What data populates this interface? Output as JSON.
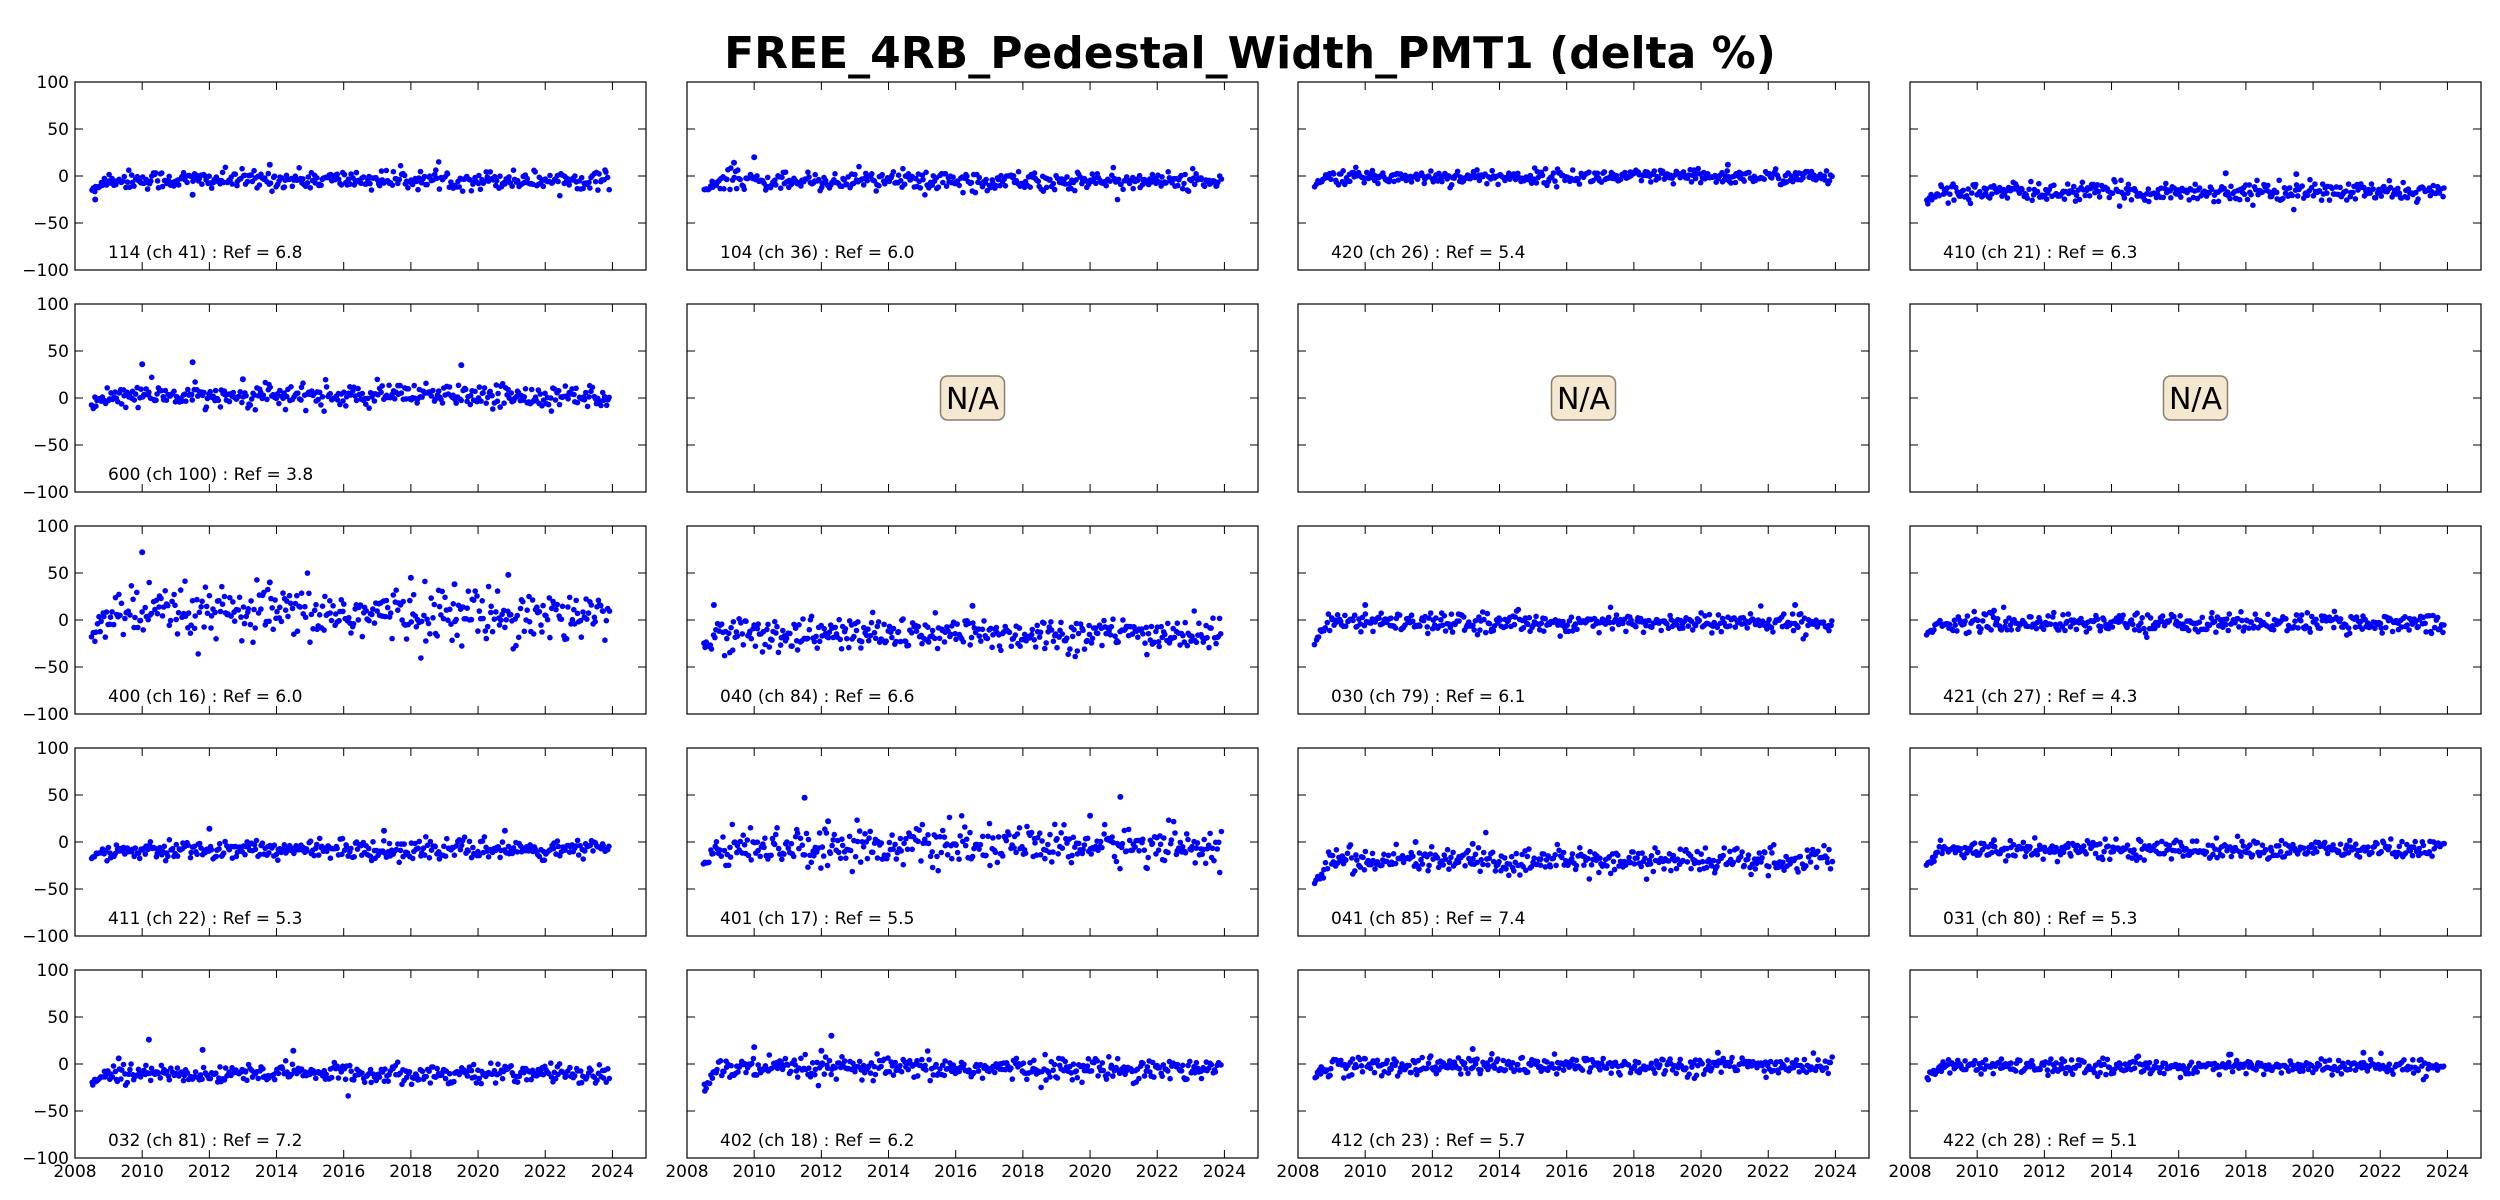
{
  "chart_data": {
    "type": "scatter",
    "title": "FREE_4RB_Pedestal_Width_PMT1 (delta %)",
    "layout": {
      "rows": 5,
      "cols": 4
    },
    "xlim": [
      2008,
      2025
    ],
    "ylim": [
      -100,
      100
    ],
    "xticks": [
      2008,
      2010,
      2012,
      2014,
      2016,
      2018,
      2020,
      2022,
      2024
    ],
    "yticks": [
      100,
      50,
      0,
      -50,
      -100
    ],
    "xtick_labels": [
      "2008",
      "2010",
      "2012",
      "2014",
      "2016",
      "2018",
      "2020",
      "2022",
      "2024"
    ],
    "ytick_labels": [
      "100",
      "50",
      "0",
      "−50",
      "−100"
    ],
    "grid": false,
    "series_color": "#0000ff",
    "na_box_color": "#f5e8d0",
    "na_label": "N/A",
    "x_range": [
      2008.5,
      2023.9
    ],
    "panels": [
      {
        "label": "114 (ch 41) : Ref = 6.8",
        "na": false,
        "level": -4,
        "spread": 5,
        "start": -15,
        "outliers": [
          [
            2008.6,
            -25
          ],
          [
            2013.8,
            12
          ],
          [
            2011.5,
            -20
          ]
        ]
      },
      {
        "label": "104 (ch 36) : Ref = 6.0",
        "na": false,
        "level": -5,
        "spread": 5,
        "start": -15,
        "outliers": [
          [
            2010.0,
            20
          ],
          [
            2009.4,
            14
          ]
        ]
      },
      {
        "label": "420 (ch 26) : Ref = 5.4",
        "na": false,
        "level": -1,
        "spread": 4,
        "start": -10,
        "outliers": [
          [
            2020.8,
            12
          ]
        ]
      },
      {
        "label": "410 (ch 21) : Ref = 6.3",
        "na": false,
        "level": -17,
        "spread": 5,
        "start": -25,
        "outliers": [
          [
            2019.5,
            2
          ],
          [
            2017.4,
            3
          ]
        ]
      },
      {
        "label": "600 (ch 100) : Ref = 3.8",
        "na": false,
        "level": 2,
        "spread": 6,
        "start": -12,
        "outliers": [
          [
            2010.0,
            36
          ],
          [
            2011.5,
            38
          ],
          [
            2019.5,
            35
          ],
          [
            2013.0,
            20
          ]
        ]
      },
      {
        "label": "",
        "na": true
      },
      {
        "label": "",
        "na": true
      },
      {
        "label": "",
        "na": true
      },
      {
        "label": "400 (ch 16) : Ref = 6.0",
        "na": false,
        "level": 6,
        "spread": 14,
        "start": -22,
        "outliers": [
          [
            2010.0,
            72
          ],
          [
            2013.8,
            40
          ],
          [
            2018.0,
            45
          ],
          [
            2020.9,
            48
          ],
          [
            2019.3,
            38
          ]
        ]
      },
      {
        "label": "040 (ch 84) : Ref = 6.6",
        "na": false,
        "level": -15,
        "spread": 9,
        "start": -28,
        "outliers": [
          [
            2008.8,
            16
          ],
          [
            2016.5,
            15
          ]
        ]
      },
      {
        "label": "030 (ch 79) : Ref = 6.1",
        "na": false,
        "level": -3,
        "spread": 5,
        "start": -22,
        "outliers": [
          [
            2010.0,
            16
          ],
          [
            2022.8,
            16
          ]
        ]
      },
      {
        "label": "421 (ch 27) : Ref = 4.3",
        "na": false,
        "level": -3,
        "spread": 5,
        "start": -15,
        "outliers": [
          [
            2010.5,
            10
          ]
        ]
      },
      {
        "label": "411 (ch 22) : Ref = 5.3",
        "na": false,
        "level": -8,
        "spread": 5,
        "start": -18,
        "outliers": [
          [
            2017.2,
            12
          ],
          [
            2012.0,
            14
          ],
          [
            2020.8,
            12
          ]
        ]
      },
      {
        "label": "401 (ch 17) : Ref = 5.5",
        "na": false,
        "level": -4,
        "spread": 10,
        "start": -25,
        "outliers": [
          [
            2011.5,
            47
          ],
          [
            2020.9,
            48
          ],
          [
            2020.0,
            28
          ],
          [
            2012.2,
            22
          ]
        ]
      },
      {
        "label": "041 (ch 85) : Ref = 7.4",
        "na": false,
        "level": -20,
        "spread": 7,
        "start": -42,
        "outliers": [
          [
            2011.5,
            0
          ],
          [
            2013.2,
            -2
          ]
        ]
      },
      {
        "label": "031 (ch 80) : Ref = 5.3",
        "na": false,
        "level": -8,
        "spread": 5,
        "start": -28,
        "outliers": [
          [
            2010.5,
            2
          ]
        ]
      },
      {
        "label": "032 (ch 81) : Ref = 7.2",
        "na": false,
        "level": -10,
        "spread": 5,
        "start": -20,
        "outliers": [
          [
            2010.2,
            26
          ],
          [
            2011.8,
            15
          ],
          [
            2014.5,
            14
          ],
          [
            2009.3,
            6
          ]
        ]
      },
      {
        "label": "402 (ch 18) : Ref = 6.2",
        "na": false,
        "level": -5,
        "spread": 6,
        "start": -28,
        "outliers": [
          [
            2010.0,
            18
          ],
          [
            2012.3,
            30
          ],
          [
            2012.0,
            14
          ]
        ]
      },
      {
        "label": "412 (ch 23) : Ref = 5.7",
        "na": false,
        "level": -2,
        "spread": 5,
        "start": -12,
        "outliers": [
          [
            2013.2,
            16
          ],
          [
            2020.5,
            12
          ]
        ]
      },
      {
        "label": "422 (ch 28) : Ref = 5.1",
        "na": false,
        "level": -3,
        "spread": 4,
        "start": -15,
        "outliers": [
          [
            2021.5,
            12
          ],
          [
            2017.5,
            10
          ]
        ]
      }
    ]
  }
}
